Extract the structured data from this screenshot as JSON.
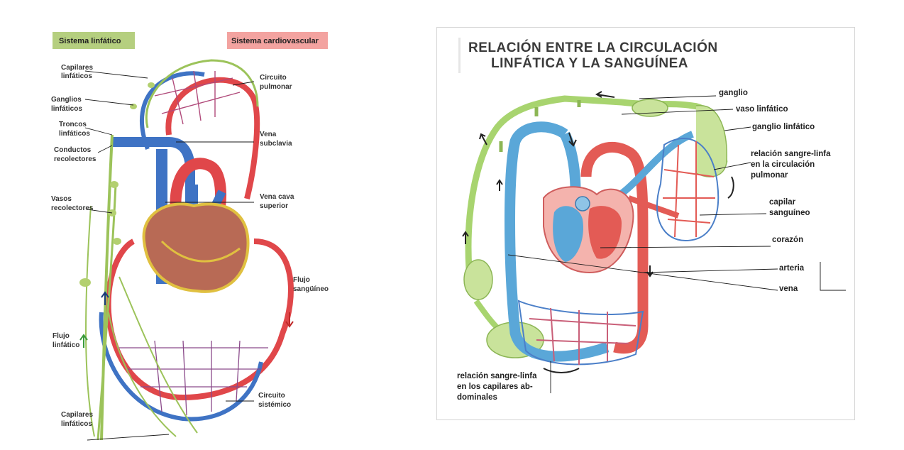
{
  "left": {
    "header_lymph": "Sistema linfático",
    "header_cardio": "Sistema cardiovascular",
    "labels": {
      "capilares_top_1": "Capilares",
      "capilares_top_2": "linfáticos",
      "ganglios_1": "Ganglios",
      "ganglios_2": "linfáticos",
      "troncos_1": "Troncos",
      "troncos_2": "linfáticos",
      "conductos_1": "Conductos",
      "conductos_2": "recolectores",
      "vasos_1": "Vasos",
      "vasos_2": "recolectores",
      "flujo_linf_1": "Flujo",
      "flujo_linf_2": "linfático",
      "capilares_bot_1": "Capilares",
      "capilares_bot_2": "linfáticos",
      "circuito_pulm_1": "Circuito",
      "circuito_pulm_2": "pulmonar",
      "vena_sub_1": "Vena",
      "vena_sub_2": "subclavia",
      "vena_cava_1": "Vena cava",
      "vena_cava_2": "superior",
      "flujo_sang_1": "Flujo",
      "flujo_sang_2": "sangüíneo",
      "circuito_sist_1": "Circuito",
      "circuito_sist_2": "sistémico"
    }
  },
  "right": {
    "title_line1": "RELACIÓN ENTRE LA CIRCULACIÓN",
    "title_line2": "LINFÁTICA Y LA SANGUÍNEA",
    "labels": {
      "ganglio": "ganglio",
      "vaso_linfatico": "vaso linfático",
      "ganglio_linfatico": "ganglio linfático",
      "relacion_pulm_1": "relación sangre-linfa",
      "relacion_pulm_2": "en la circulación",
      "relacion_pulm_3": "pulmonar",
      "capilar_1": "capilar",
      "capilar_2": "sanguíneo",
      "corazon": "corazón",
      "arteria": "arteria",
      "vena": "vena",
      "relacion_abd_1": "relación sangre-linfa",
      "relacion_abd_2": "en los capilares ab-",
      "relacion_abd_3": "dominales"
    }
  },
  "colors": {
    "lymph_green": "#9cc35a",
    "lymph_header": "#b5cf7f",
    "cardio_header": "#f3a3a0",
    "artery_red": "#e0474a",
    "vein_blue": "#3f73c4",
    "right_green": "#a8d46f",
    "right_blue": "#5aa7d8",
    "right_red": "#e35b55"
  }
}
